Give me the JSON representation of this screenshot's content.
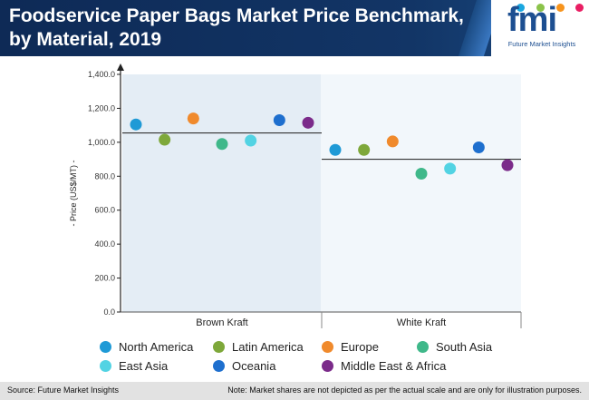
{
  "header": {
    "title": "Foodservice Paper Bags Market Price Benchmark, by Material, 2019",
    "logo_text": "fmi",
    "logo_subtitle": "Future Market Insights",
    "logo_dot_colors": [
      "#1aa7e0",
      "#8bc34a",
      "#f7941d",
      "#e91e63"
    ]
  },
  "footer": {
    "source": "Source: Future Market Insights",
    "note": "Note: Market shares are not depicted as per the actual scale and are only for illustration purposes."
  },
  "chart_data": {
    "type": "scatter",
    "title": "Foodservice Paper Bags Market Price Benchmark, by Material, 2019",
    "xlabel": "",
    "ylabel": "- Price (US$/MT) -",
    "ylim": [
      0,
      1400
    ],
    "yticks": [
      "0.0",
      "200.0",
      "400.0",
      "600.0",
      "800.0",
      "1,000.0",
      "1,200.0",
      "1,400.0"
    ],
    "categories": [
      "Brown Kraft",
      "White Kraft"
    ],
    "benchmark": [
      1055,
      900
    ],
    "grid": false,
    "legend_position": "bottom",
    "series": [
      {
        "name": "North America",
        "color": "#1f9ad6",
        "values": [
          1105,
          955
        ]
      },
      {
        "name": "Latin America",
        "color": "#7ea83a",
        "values": [
          1015,
          955
        ]
      },
      {
        "name": "Europe",
        "color": "#f08a2c",
        "values": [
          1140,
          1005
        ]
      },
      {
        "name": "South Asia",
        "color": "#3fb88a",
        "values": [
          990,
          815
        ]
      },
      {
        "name": "East Asia",
        "color": "#52d3e3",
        "values": [
          1010,
          845
        ]
      },
      {
        "name": "Oceania",
        "color": "#1e6fce",
        "values": [
          1130,
          970
        ]
      },
      {
        "name": "Middle East & Africa",
        "color": "#7b2b8a",
        "values": [
          1115,
          865
        ]
      }
    ]
  }
}
